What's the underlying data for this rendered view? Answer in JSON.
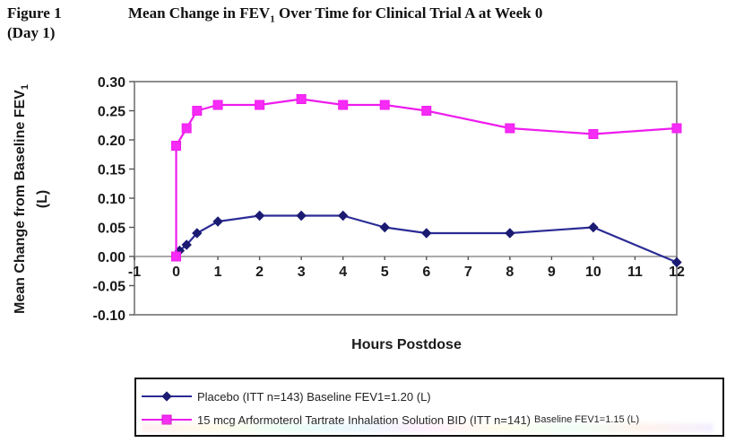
{
  "figure": {
    "label": "Figure 1",
    "day_label": "(Day 1)",
    "title_pre": "Mean Change in FEV",
    "title_sub": "1",
    "title_post": " Over Time for Clinical Trial A at Week 0"
  },
  "axes": {
    "ylabel_pre": "Mean Change from Baseline FEV",
    "ylabel_sub": "1",
    "ylabel_unit": "(L)",
    "xlabel": "Hours Postdose"
  },
  "legend": {
    "entries": [
      {
        "text": "Placebo (ITT n=143) Baseline FEV1=1.20 (L)",
        "small": ""
      },
      {
        "text": "15 mcg Arformoterol Tartrate Inhalation Solution BID (ITT n=141)",
        "small": "Baseline FEV1=1.15 (L)"
      }
    ]
  },
  "chart_data": {
    "type": "line",
    "title": "Mean Change in FEV1 Over Time for Clinical Trial A at Week 0 (Day 1)",
    "xlabel": "Hours Postdose",
    "ylabel": "Mean Change from Baseline FEV1 (L)",
    "xlim": [
      -1,
      12
    ],
    "ylim": [
      -0.1,
      0.3
    ],
    "x_ticks": [
      -1,
      0,
      1,
      2,
      3,
      4,
      5,
      6,
      7,
      8,
      9,
      10,
      11,
      12
    ],
    "y_ticks": [
      0.3,
      0.25,
      0.2,
      0.15,
      0.1,
      0.05,
      0.0,
      -0.05,
      -0.1
    ],
    "grid": false,
    "legend_position": "bottom",
    "series": [
      {
        "name": "Placebo (ITT n=143) Baseline FEV1=1.20 (L)",
        "marker": "diamond",
        "color": "#2B2B96",
        "marker_color": "#1B1B72",
        "x": [
          0,
          0.083,
          0.25,
          0.5,
          1,
          2,
          3,
          4,
          5,
          6,
          8,
          10,
          12
        ],
        "y": [
          0.0,
          0.01,
          0.02,
          0.04,
          0.06,
          0.07,
          0.07,
          0.07,
          0.05,
          0.04,
          0.04,
          0.05,
          -0.01
        ]
      },
      {
        "name": "15 mcg Arformoterol Tartrate Inhalation Solution BID (ITT n=141) Baseline FEV1=1.15 (L)",
        "marker": "square",
        "color": "#EE1CEE",
        "marker_color": "#F62BF6",
        "x": [
          0,
          0,
          0.25,
          0.5,
          1,
          2,
          3,
          4,
          5,
          6,
          8,
          10,
          12
        ],
        "y": [
          0.0,
          0.19,
          0.22,
          0.25,
          0.26,
          0.26,
          0.27,
          0.26,
          0.26,
          0.25,
          0.22,
          0.21,
          0.22
        ]
      }
    ]
  },
  "colors": {
    "axis": "#8E8E8E",
    "text": "#1A1A1A"
  }
}
